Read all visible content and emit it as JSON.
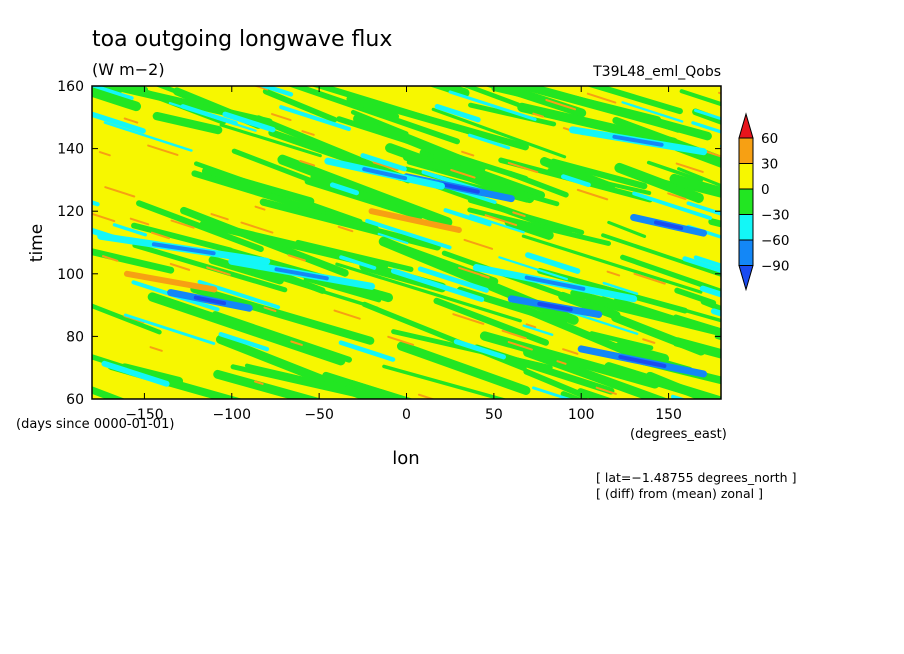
{
  "chart_data": {
    "type": "heatmap",
    "title": "toa outgoing longwave flux",
    "subtitle": "(W m−2)",
    "run_label": "T39L48_eml_Qobs",
    "xlabel": "lon",
    "x_units_label": "(degrees_east)",
    "ylabel": "time",
    "y_units_label": "(days since 0000-01-01)",
    "xlim": [
      -180,
      180
    ],
    "ylim": [
      60,
      160
    ],
    "x_ticks": [
      -150,
      -100,
      -50,
      0,
      50,
      100,
      150
    ],
    "x_tick_labels": [
      "−150",
      "−100",
      "−50",
      "0",
      "50",
      "100",
      "150"
    ],
    "y_ticks": [
      60,
      80,
      100,
      120,
      140,
      160
    ],
    "y_tick_labels": [
      "60",
      "80",
      "100",
      "120",
      "140",
      "160"
    ],
    "notes": [
      "[ lat=−1.48755 degrees_north ]",
      "[ (diff) from (mean) zonal ]"
    ],
    "colorbar": {
      "levels": [
        60,
        30,
        0,
        -30,
        -60,
        -90
      ],
      "level_labels": [
        "60",
        "30",
        "0",
        "−30",
        "−60",
        "−90"
      ],
      "colors": [
        "#e8141c",
        "#f7a013",
        "#f7f700",
        "#22e622",
        "#13f7f7",
        "#1387f7",
        "#1a4bf0"
      ]
    },
    "features": [
      {
        "lon0": -100,
        "t0": 104,
        "lon1": -20,
        "t1": 96,
        "value": -60
      },
      {
        "lon0": -175,
        "t0": 112,
        "lon1": -80,
        "t1": 104,
        "value": -60
      },
      {
        "lon0": -135,
        "t0": 94,
        "lon1": -90,
        "t1": 89,
        "value": -90
      },
      {
        "lon0": 0,
        "t0": 131,
        "lon1": 60,
        "t1": 124,
        "value": -90
      },
      {
        "lon0": -45,
        "t0": 136,
        "lon1": 20,
        "t1": 128,
        "value": -60
      },
      {
        "lon0": 40,
        "t0": 102,
        "lon1": 130,
        "t1": 92,
        "value": -60
      },
      {
        "lon0": 60,
        "t0": 92,
        "lon1": 110,
        "t1": 87,
        "value": -90
      },
      {
        "lon0": 100,
        "t0": 76,
        "lon1": 170,
        "t1": 68,
        "value": -90
      },
      {
        "lon0": 95,
        "t0": 146,
        "lon1": 170,
        "t1": 139,
        "value": -60
      },
      {
        "lon0": 130,
        "t0": 118,
        "lon1": 170,
        "t1": 113,
        "value": -90
      },
      {
        "lon0": -20,
        "t0": 120,
        "lon1": 30,
        "t1": 114,
        "value": 30
      },
      {
        "lon0": -160,
        "t0": 100,
        "lon1": -110,
        "t1": 95,
        "value": 30
      }
    ]
  }
}
